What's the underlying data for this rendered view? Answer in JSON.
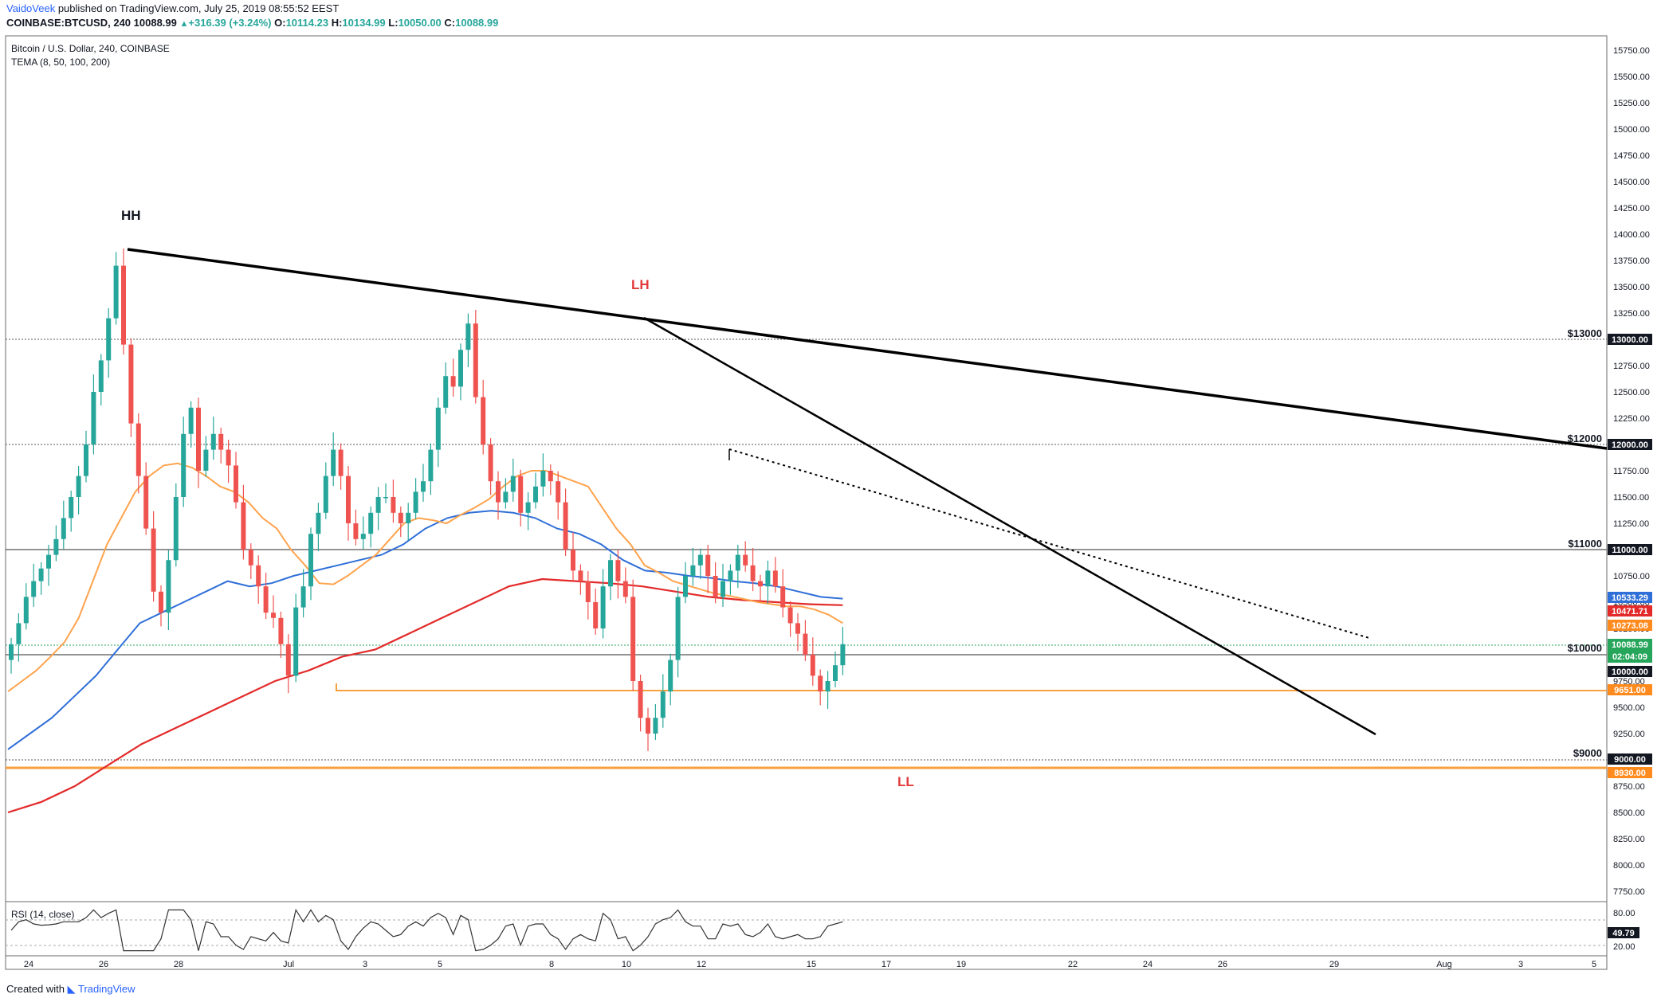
{
  "header": {
    "author": "VaidoVeek",
    "published": "published on TradingView.com, July 25, 2019 08:55:52 EEST",
    "symbol": "COINBASE:BTCUSD, 240",
    "last": "10088.99",
    "change": "+316.39 (+3.24%)",
    "o_label": "O:",
    "o": "10114.23",
    "h_label": "H:",
    "h": "10134.99",
    "l_label": "L:",
    "l": "10050.00",
    "c_label": "C:",
    "c": "10088.99"
  },
  "legend": {
    "title": "Bitcoin / U.S. Dollar, 240, COINBASE",
    "indicator": "TEMA (8, 50, 100, 200)",
    "rsi": "RSI (14, close)"
  },
  "footer": {
    "created": "Created with",
    "brand": "TradingView"
  },
  "colors": {
    "up": "#26a69a",
    "down": "#ef5350",
    "ema50": "#ffa34d",
    "ema100": "#2f6fd8",
    "ema200": "#e32a2a",
    "support": "#f7a03d",
    "green_box": "#26a65b",
    "dark_box": "#131722"
  },
  "chart_data": {
    "type": "candlestick",
    "y_axis_range": [
      7500,
      15900
    ],
    "y_ticks": [
      "15750.00",
      "15500.00",
      "15250.00",
      "15000.00",
      "14750.00",
      "14500.00",
      "14250.00",
      "14000.00",
      "13750.00",
      "13500.00",
      "13250.00",
      "13000.00",
      "12750.00",
      "12500.00",
      "12250.00",
      "12000.00",
      "11750.00",
      "11500.00",
      "11250.00",
      "11000.00",
      "10750.00",
      "10500.00",
      "10250.00",
      "10000.00",
      "9750.00",
      "9500.00",
      "9250.00",
      "9000.00",
      "8750.00",
      "8500.00",
      "8250.00",
      "8000.00",
      "7750.00"
    ],
    "x_ticks": [
      "24",
      "26",
      "28",
      "Jul",
      "3",
      "5",
      "8",
      "10",
      "12",
      "15",
      "17",
      "19",
      "22",
      "24",
      "26",
      "29",
      "Aug",
      "3",
      "5"
    ],
    "closes": [
      10100,
      10300,
      10550,
      10700,
      10820,
      10950,
      11100,
      11300,
      11500,
      11700,
      12000,
      12500,
      12800,
      13200,
      13700,
      12950,
      12200,
      11700,
      11200,
      10600,
      10400,
      10900,
      11500,
      12100,
      12350,
      11750,
      11950,
      12100,
      11950,
      11800,
      11450,
      11000,
      10850,
      10650,
      10400,
      10350,
      10100,
      9800,
      10450,
      10650,
      11150,
      11350,
      11700,
      11950,
      11700,
      11250,
      11100,
      11150,
      11350,
      11500,
      11500,
      11350,
      11250,
      11350,
      11550,
      11650,
      11950,
      12350,
      12650,
      12550,
      12900,
      13150,
      12450,
      12000,
      11650,
      11450,
      11550,
      11700,
      11350,
      11450,
      11600,
      11750,
      11650,
      11450,
      11000,
      10800,
      10700,
      10500,
      10250,
      10650,
      10900,
      10700,
      10550,
      9750,
      9400,
      9250,
      9400,
      9650,
      9950,
      10550,
      10750,
      10850,
      10950,
      10750,
      10550,
      10700,
      10800,
      10950,
      10850,
      10700,
      10650,
      10800,
      10650,
      10450,
      10300,
      10200,
      10000,
      9800,
      9650,
      9750,
      9900,
      10100
    ],
    "ema50": [
      9650,
      9750,
      9850,
      9980,
      10120,
      10350,
      10700,
      11050,
      11300,
      11550,
      11700,
      11800,
      11820,
      11780,
      11700,
      11600,
      11550,
      11450,
      11300,
      11200,
      11000,
      10850,
      10680,
      10670,
      10750,
      10850,
      10950,
      11100,
      11250,
      11300,
      11280,
      11250,
      11330,
      11400,
      11480,
      11600,
      11700,
      11750,
      11750,
      11700,
      11650,
      11600,
      11400,
      11200,
      11050,
      10850,
      10780,
      10700,
      10660,
      10620,
      10580,
      10560,
      10530,
      10500,
      10480,
      10460,
      10460,
      10430,
      10380,
      10300
    ],
    "ema100": [
      9100,
      9250,
      9400,
      9600,
      9800,
      10050,
      10300,
      10400,
      10500,
      10600,
      10700,
      10650,
      10680,
      10750,
      10800,
      10850,
      10900,
      10950,
      11050,
      11200,
      11300,
      11350,
      11370,
      11350,
      11300,
      11200,
      11150,
      11050,
      10900,
      10800,
      10780,
      10750,
      10730,
      10700,
      10680,
      10650,
      10600,
      10550,
      10533
    ],
    "ema200": [
      8500,
      8600,
      8750,
      8950,
      9150,
      9300,
      9450,
      9600,
      9750,
      9850,
      9980,
      10050,
      10200,
      10350,
      10500,
      10650,
      10720,
      10700,
      10680,
      10650,
      10600,
      10550,
      10520,
      10500,
      10480,
      10471
    ],
    "rsi_value": "49.79",
    "rsi_ticks": [
      "80.00",
      "20.00"
    ],
    "levels": [
      {
        "label": "$13000",
        "price": "13000.00"
      },
      {
        "label": "$12000",
        "price": "12000.00"
      },
      {
        "label": "$11000",
        "price": "11000.00"
      },
      {
        "label": "$10000",
        "price": "10000.00"
      },
      {
        "label": "$9000",
        "price": "9000.00"
      }
    ],
    "price_boxes": [
      "10533.29",
      "10471.71",
      "10273.08",
      "10088.99",
      "02:04:09",
      "10000.00",
      "9651.00",
      "9000.00",
      "8930.00",
      "12000.00",
      "13000.00",
      "11000.00"
    ],
    "annotations": [
      "HH",
      "LH",
      "LL"
    ]
  }
}
